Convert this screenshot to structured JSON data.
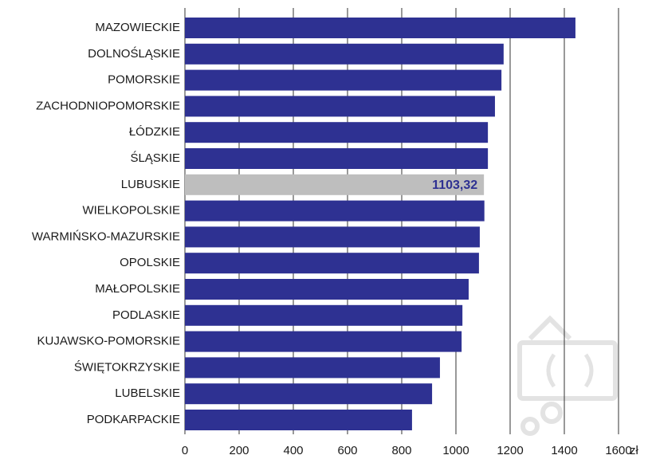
{
  "chart_data": {
    "type": "barh",
    "categories": [
      "MAZOWIECKIE",
      "DOLNOŚLĄSKIE",
      "POMORSKIE",
      "ZACHODNIOPOMORSKIE",
      "ŁÓDZKIE",
      "ŚLĄSKIE",
      "LUBUSKIE",
      "WIELKOPOLSKIE",
      "WARMIŃSKO-MAZURSKIE",
      "OPOLSKIE",
      "MAŁOPOLSKIE",
      "PODLASKIE",
      "KUJAWSKO-POMORSKIE",
      "ŚWIĘTOKRZYSKIE",
      "LUBELSKIE",
      "PODKARPACKIE"
    ],
    "values": [
      1441,
      1176,
      1168,
      1144,
      1118,
      1118,
      1103.32,
      1105,
      1088,
      1085,
      1047,
      1024,
      1021,
      941,
      912,
      838
    ],
    "value_labels": [
      null,
      null,
      null,
      null,
      null,
      null,
      "1103,32",
      null,
      null,
      null,
      null,
      null,
      null,
      null,
      null,
      null
    ],
    "colors": [
      "#2e3192",
      "#2e3192",
      "#2e3192",
      "#2e3192",
      "#2e3192",
      "#2e3192",
      "#bebebe",
      "#2e3192",
      "#2e3192",
      "#2e3192",
      "#2e3192",
      "#2e3192",
      "#2e3192",
      "#2e3192",
      "#2e3192",
      "#2e3192"
    ],
    "xlabel": "zł",
    "xlim": [
      0,
      1600
    ],
    "xticks": [
      0,
      200,
      400,
      600,
      800,
      1000,
      1200,
      1400,
      1600
    ],
    "grid": true
  }
}
